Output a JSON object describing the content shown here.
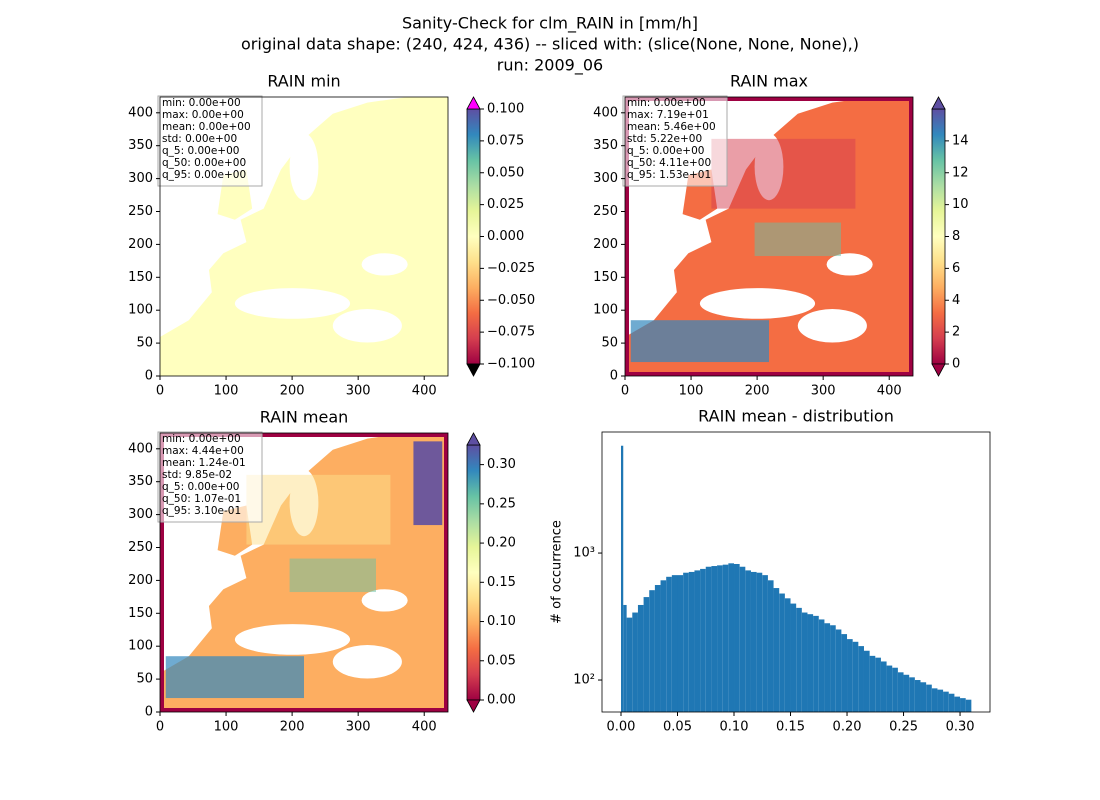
{
  "figure": {
    "title_lines": [
      "Sanity-Check for clm_RAIN in [mm/h]",
      "original data shape: (240, 424, 436) -- sliced with: (slice(None, None, None),)",
      "run: 2009_06"
    ]
  },
  "cmap": [
    "#9e0142",
    "#d53e4f",
    "#f46d43",
    "#fdae61",
    "#fee08b",
    "#ffffbf",
    "#e6f598",
    "#abdda4",
    "#66c2a5",
    "#3288bd",
    "#5e4fa2"
  ],
  "chart_data": [
    {
      "type": "image",
      "title": "RAIN min",
      "xlim": [
        0,
        436
      ],
      "ylim": [
        0,
        424
      ],
      "xticks": [
        0,
        100,
        200,
        300,
        400
      ],
      "yticks": [
        0,
        50,
        100,
        150,
        200,
        250,
        300,
        350,
        400
      ],
      "stats": [
        "min: 0.00e+00",
        "max: 0.00e+00",
        "mean: 0.00e+00",
        "std: 0.00e+00",
        "q_5: 0.00e+00",
        "q_50: 0.00e+00",
        "q_95: 0.00e+00"
      ],
      "colorbar": {
        "clim": [
          -0.1,
          0.1
        ],
        "extend_colors": [
          "#000000",
          "#ff00ff"
        ],
        "ticks": [
          {
            "value": -0.1,
            "label": "−0.100"
          },
          {
            "value": -0.075,
            "label": "−0.075"
          },
          {
            "value": -0.05,
            "label": "−0.050"
          },
          {
            "value": -0.025,
            "label": "−0.025"
          },
          {
            "value": 0,
            "label": "0.000"
          },
          {
            "value": 0.025,
            "label": "0.025"
          },
          {
            "value": 0.05,
            "label": "0.050"
          },
          {
            "value": 0.075,
            "label": "0.075"
          },
          {
            "value": 0.1,
            "label": "0.100"
          }
        ]
      }
    },
    {
      "type": "image",
      "title": "RAIN max",
      "xlim": [
        0,
        436
      ],
      "ylim": [
        0,
        424
      ],
      "xticks": [
        0,
        100,
        200,
        300,
        400
      ],
      "yticks": [
        0,
        50,
        100,
        150,
        200,
        250,
        300,
        350,
        400
      ],
      "stats": [
        "min: 0.00e+00",
        "max: 7.19e+01",
        "mean: 5.46e+00",
        "std: 5.22e+00",
        "q_5: 0.00e+00",
        "q_50: 4.11e+00",
        "q_95: 1.53e+01"
      ],
      "colorbar": {
        "clim": [
          0,
          16
        ],
        "extend_colors": [
          "#9e0142",
          "#5e4fa2"
        ],
        "ticks": [
          0,
          2,
          4,
          6,
          8,
          10,
          12,
          14
        ]
      }
    },
    {
      "type": "image",
      "title": "RAIN mean",
      "xlim": [
        0,
        436
      ],
      "ylim": [
        0,
        424
      ],
      "xticks": [
        0,
        100,
        200,
        300,
        400
      ],
      "yticks": [
        0,
        50,
        100,
        150,
        200,
        250,
        300,
        350,
        400
      ],
      "stats": [
        "min: 0.00e+00",
        "max: 4.44e+00",
        "mean: 1.24e-01",
        "std: 9.85e-02",
        "q_5: 0.00e+00",
        "q_50: 1.07e-01",
        "q_95: 3.10e-01"
      ],
      "colorbar": {
        "clim": [
          0,
          0.325
        ],
        "extend_colors": [
          "#9e0142",
          "#5e4fa2"
        ],
        "ticks": [
          {
            "value": 0,
            "label": "0.00"
          },
          {
            "value": 0.05,
            "label": "0.05"
          },
          {
            "value": 0.1,
            "label": "0.10"
          },
          {
            "value": 0.15,
            "label": "0.15"
          },
          {
            "value": 0.2,
            "label": "0.20"
          },
          {
            "value": 0.25,
            "label": "0.25"
          },
          {
            "value": 0.3,
            "label": "0.30"
          }
        ]
      }
    },
    {
      "type": "histogram",
      "title": "RAIN mean - distribution",
      "y_label": "# of occurrence",
      "color": "#1f77b4",
      "log_y": true,
      "xlim": [
        -0.0168,
        0.3265
      ],
      "ylim": [
        56,
        8980
      ],
      "xticks": [
        {
          "value": 0,
          "label": "0.00"
        },
        {
          "value": 0.05,
          "label": "0.05"
        },
        {
          "value": 0.1,
          "label": "0.10"
        },
        {
          "value": 0.15,
          "label": "0.15"
        },
        {
          "value": 0.2,
          "label": "0.20"
        },
        {
          "value": 0.25,
          "label": "0.25"
        },
        {
          "value": 0.3,
          "label": "0.30"
        }
      ],
      "yticks": [
        {
          "value": 100,
          "label": "10²"
        },
        {
          "value": 1000,
          "label": "10³"
        }
      ],
      "bins": [
        0,
        0.002,
        0.005,
        0.01,
        0.015,
        0.02,
        0.025,
        0.03,
        0.035,
        0.04,
        0.045,
        0.05,
        0.055,
        0.06,
        0.065,
        0.07,
        0.075,
        0.08,
        0.085,
        0.09,
        0.095,
        0.1,
        0.105,
        0.11,
        0.115,
        0.12,
        0.125,
        0.13,
        0.135,
        0.14,
        0.145,
        0.15,
        0.155,
        0.16,
        0.165,
        0.17,
        0.175,
        0.18,
        0.185,
        0.19,
        0.195,
        0.2,
        0.205,
        0.21,
        0.215,
        0.22,
        0.225,
        0.23,
        0.235,
        0.24,
        0.245,
        0.25,
        0.255,
        0.26,
        0.265,
        0.27,
        0.275,
        0.28,
        0.285,
        0.29,
        0.295,
        0.3,
        0.305,
        0.31
      ],
      "values": [
        7000,
        390,
        310,
        340,
        390,
        450,
        510,
        560,
        610,
        650,
        670,
        670,
        700,
        710,
        730,
        750,
        780,
        790,
        800,
        810,
        830,
        820,
        780,
        730,
        710,
        700,
        670,
        610,
        530,
        480,
        440,
        400,
        370,
        340,
        330,
        320,
        300,
        280,
        270,
        250,
        230,
        210,
        200,
        185,
        170,
        155,
        150,
        140,
        130,
        125,
        115,
        110,
        105,
        100,
        96,
        92,
        86,
        84,
        81,
        78,
        74,
        72,
        70
      ]
    }
  ]
}
